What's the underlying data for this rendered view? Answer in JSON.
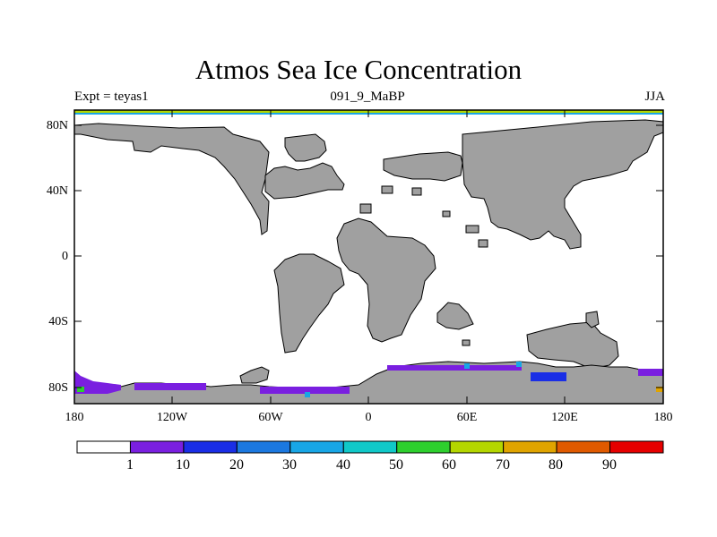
{
  "title": "Atmos Sea Ice Concentration",
  "expt_label": "Expt = teyas1",
  "subtitle": "091_9_MaBP",
  "season": "JJA",
  "axes": {
    "lat_ticks": [
      "80N",
      "40N",
      "0",
      "40S",
      "80S"
    ],
    "lon_ticks": [
      "180",
      "120W",
      "60W",
      "0",
      "60E",
      "120E",
      "180"
    ]
  },
  "colorbar": {
    "labels": [
      "1",
      "10",
      "20",
      "30",
      "40",
      "50",
      "60",
      "70",
      "80",
      "90"
    ],
    "colors": [
      "#ffffff",
      "#7a1fe0",
      "#1a2ee6",
      "#1b78e0",
      "#18a6e6",
      "#10c8c8",
      "#2ecf2e",
      "#b4d600",
      "#e0a400",
      "#e05a00",
      "#e60000"
    ]
  },
  "colors": {
    "land": "#a0a0a0",
    "ocean": "#ffffff",
    "ice_low": "#7a1fe0"
  }
}
